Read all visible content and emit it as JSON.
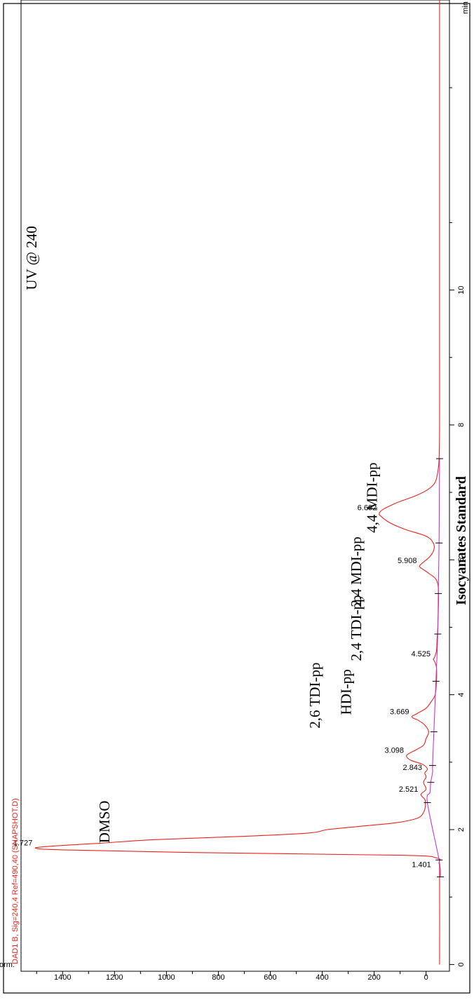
{
  "chart_data": {
    "type": "line",
    "title": "DAD1 B, Sig=240,4 Ref=490,40 (SNAPSHOT.D)",
    "xlabel": "min",
    "ylabel": "Norm.",
    "xlim": [
      -0.1,
      14.3
    ],
    "ylim": [
      -90,
      1560
    ],
    "x_ticks": [
      0,
      2,
      4,
      6,
      8,
      10
    ],
    "x_tick_labels": [
      "0",
      "2",
      "4",
      "6",
      "8",
      "10"
    ],
    "y_ticks": [
      0,
      200,
      400,
      600,
      800,
      1000,
      1200,
      1400
    ],
    "y_tick_labels": [
      "0",
      "200",
      "400",
      "600",
      "800",
      "1000",
      "1200",
      "1400"
    ],
    "series": [
      {
        "color": "#e8241c",
        "x": [
          0,
          1.3,
          1.5,
          1.58,
          1.62,
          1.66,
          1.7,
          1.727,
          1.76,
          1.8,
          1.85,
          1.9,
          1.95,
          2.0,
          2.05,
          2.1,
          2.15,
          2.2,
          2.3,
          2.4,
          2.45,
          2.52,
          2.6,
          2.7,
          2.78,
          2.84,
          2.9,
          2.97,
          3.03,
          3.1,
          3.18,
          3.25,
          3.35,
          3.45,
          3.55,
          3.62,
          3.67,
          3.72,
          3.8,
          3.9,
          4.0,
          4.2,
          4.4,
          4.5,
          4.525,
          4.55,
          4.65,
          4.8,
          5.0,
          5.5,
          5.7,
          5.8,
          5.88,
          5.91,
          5.95,
          6.05,
          6.15,
          6.25,
          6.35,
          6.45,
          6.55,
          6.65,
          6.69,
          6.75,
          6.85,
          6.95,
          7.05,
          7.15,
          7.3,
          7.5,
          8.0,
          9.0,
          10.0,
          11.0,
          12.0,
          13.0,
          14.0,
          14.3
        ],
        "y": [
          -52,
          -52,
          -50,
          -40,
          100,
          900,
          1400,
          1505,
          1420,
          1250,
          1050,
          700,
          450,
          380,
          250,
          120,
          50,
          20,
          5,
          3,
          5,
          20,
          0,
          10,
          0,
          5,
          -5,
          15,
          60,
          75,
          40,
          10,
          0,
          -10,
          5,
          30,
          55,
          35,
          0,
          -20,
          -35,
          -40,
          -40,
          -32,
          -28,
          -32,
          -40,
          -42,
          -45,
          -48,
          -40,
          -10,
          20,
          25,
          15,
          -15,
          -30,
          -28,
          0,
          80,
          140,
          175,
          180,
          165,
          110,
          40,
          -10,
          -35,
          -45,
          -50,
          -52,
          -52,
          -52,
          -52,
          -52,
          -52,
          -52,
          -52
        ]
      },
      {
        "color": "#cc33cc",
        "x": [
          1.3,
          1.55,
          2.4,
          2.55,
          2.7,
          2.85,
          2.95,
          3.45,
          4.2,
          4.9,
          5.5,
          6.25,
          7.5
        ],
        "y": [
          -55,
          -50,
          -5,
          -15,
          -18,
          -25,
          -25,
          -30,
          -38,
          -45,
          -47,
          -50,
          -52
        ]
      }
    ],
    "peaks": [
      {
        "x": 1.401,
        "label": "1.401"
      },
      {
        "x": 1.727,
        "label": "1.727"
      },
      {
        "x": 2.521,
        "label": "2.521"
      },
      {
        "x": 2.843,
        "label": "2.843"
      },
      {
        "x": 3.098,
        "label": "3.098"
      },
      {
        "x": 3.669,
        "label": "3.669"
      },
      {
        "x": 4.525,
        "label": "4.525"
      },
      {
        "x": 5.908,
        "label": "5.908"
      },
      {
        "x": 6.692,
        "label": "6.692"
      }
    ],
    "baseline_ticks_x": [
      1.3,
      1.55,
      2.4,
      2.7,
      2.95,
      3.45,
      4.2,
      4.9,
      5.5,
      6.25,
      7.5
    ],
    "annotations": [
      {
        "text": "DMSO",
        "x": 1.8,
        "y": 1220
      },
      {
        "text": "2,6 TDI-pp",
        "x": 3.5,
        "y": 410
      },
      {
        "text": "HDI-pp",
        "x": 3.7,
        "y": 290
      },
      {
        "text": "2,4 TDI-pp",
        "x": 4.5,
        "y": 250
      },
      {
        "text": "2,4 MDI-pp",
        "x": 5.3,
        "y": 250
      },
      {
        "text": "4,4 MDI-pp",
        "x": 6.4,
        "y": 190
      },
      {
        "text": "UV @ 240",
        "x": 10.0,
        "y": 1500
      }
    ],
    "bottom_caption": "Isocyanates Standard"
  }
}
